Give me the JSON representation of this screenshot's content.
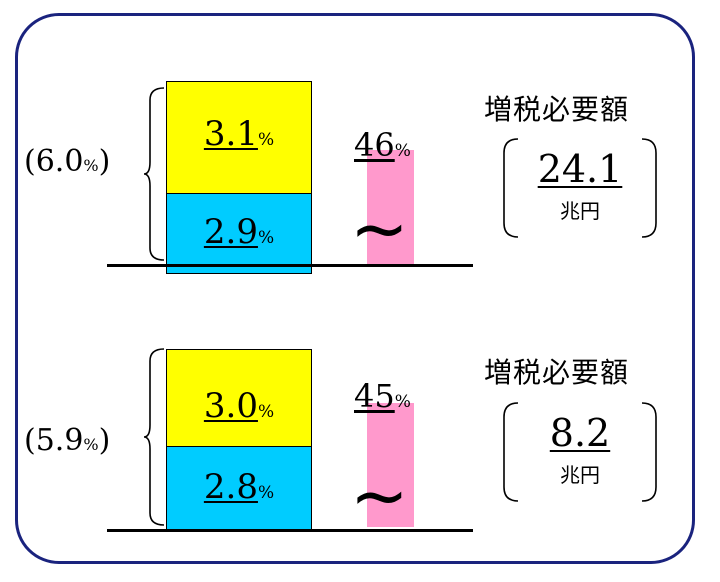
{
  "panels": [
    {
      "stack_top": {
        "value": "3.1",
        "unit": "%"
      },
      "stack_bottom": {
        "value": "2.9",
        "unit": "%"
      },
      "total": {
        "value": "(6.0",
        "unit": "%",
        "close": ")"
      },
      "pink_bar": {
        "value": "46",
        "unit": "%"
      },
      "tax_label": "増税必要額",
      "amount": {
        "value": "24.1",
        "unit": "兆円"
      }
    },
    {
      "stack_top": {
        "value": "3.0",
        "unit": "%"
      },
      "stack_bottom": {
        "value": "2.8",
        "unit": "%"
      },
      "total": {
        "value": "(5.9",
        "unit": "%",
        "close": ")"
      },
      "pink_bar": {
        "value": "45",
        "unit": "%"
      },
      "tax_label": "増税必要額",
      "amount": {
        "value": "8.2",
        "unit": "兆円"
      }
    }
  ],
  "colors": {
    "frame": "#1a237e",
    "stack_top": "#ffff00",
    "stack_bottom": "#00ccff",
    "pink_bar": "#ff99cc"
  }
}
